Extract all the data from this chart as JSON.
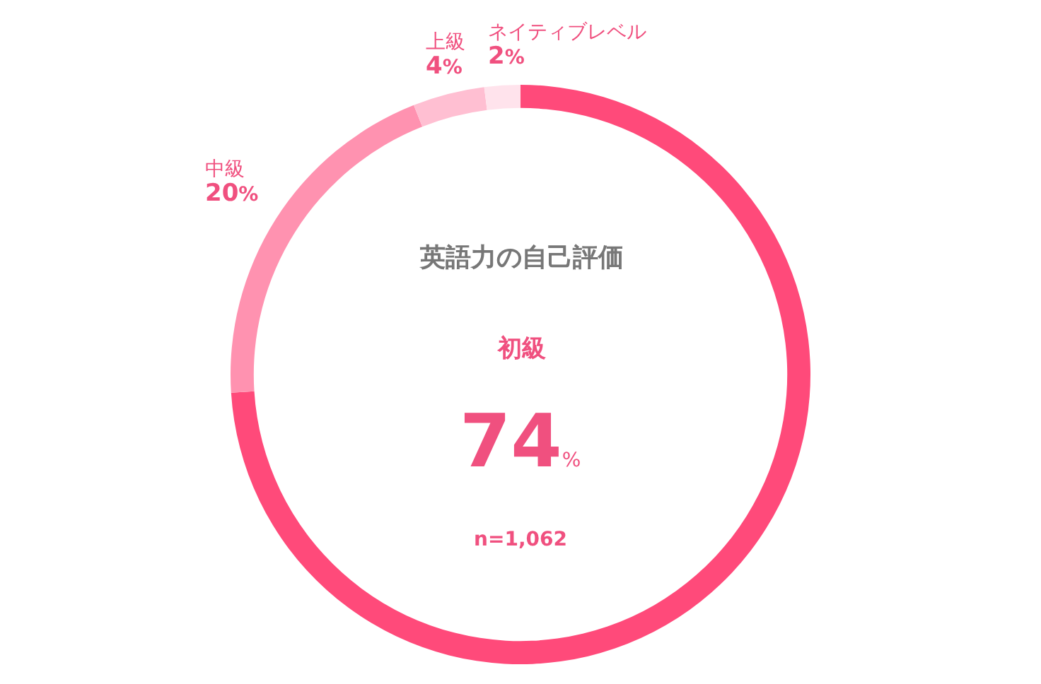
{
  "chart_data": {
    "type": "donut",
    "title": "英語力の自己評価",
    "categories": [
      "初級",
      "中級",
      "上級",
      "ネイティブレベル"
    ],
    "values": [
      74,
      20,
      4,
      2
    ],
    "colors": [
      "#ff4a7a",
      "#ff92b0",
      "#ffbfd2",
      "#ffe3ec"
    ],
    "value_labels": [
      "74%",
      "20%",
      "4%",
      "2%"
    ],
    "annotations": [
      "n=1,062"
    ]
  }
}
